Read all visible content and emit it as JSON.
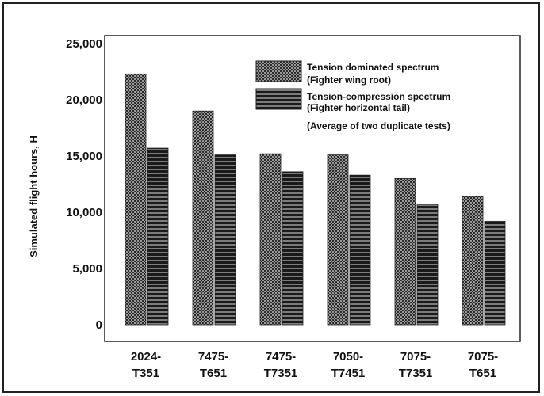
{
  "chart_data": {
    "type": "bar",
    "ylabel": "Simulated flight hours, H",
    "ylim": [
      0,
      25000
    ],
    "yticks": [
      {
        "value": 0,
        "label": "0"
      },
      {
        "value": 5000,
        "label": "5,000"
      },
      {
        "value": 10000,
        "label": "10,000"
      },
      {
        "value": 15000,
        "label": "15,000"
      },
      {
        "value": 20000,
        "label": "20,000"
      },
      {
        "value": 25000,
        "label": "25,000"
      }
    ],
    "categories": [
      {
        "line1": "2024-",
        "line2": "T351"
      },
      {
        "line1": "7475-",
        "line2": "T651"
      },
      {
        "line1": "7475-",
        "line2": "T7351"
      },
      {
        "line1": "7050-",
        "line2": "T7451"
      },
      {
        "line1": "7075-",
        "line2": "T7351"
      },
      {
        "line1": "7075-",
        "line2": "T651"
      }
    ],
    "series": [
      {
        "name": "Tension dominated spectrum",
        "subname": "(Fighter wing root)",
        "pattern": "checker",
        "values": [
          22300,
          19000,
          15200,
          15100,
          13000,
          11400
        ]
      },
      {
        "name": "Tension-compression spectrum",
        "subname": "(Fighter horizontal tail)",
        "pattern": "stripes",
        "values": [
          15700,
          15100,
          13600,
          13300,
          10700,
          9200
        ]
      }
    ],
    "legend_note": "(Average of two duplicate tests)",
    "legend_position": "top-right",
    "grid": false,
    "colors": {
      "checker_dark": "#2b2b2b",
      "checker_light": "#9a9a9a",
      "stripe_dark": "#1a1a1a",
      "stripe_light": "#7c7c7c",
      "frame": "#222222"
    }
  }
}
